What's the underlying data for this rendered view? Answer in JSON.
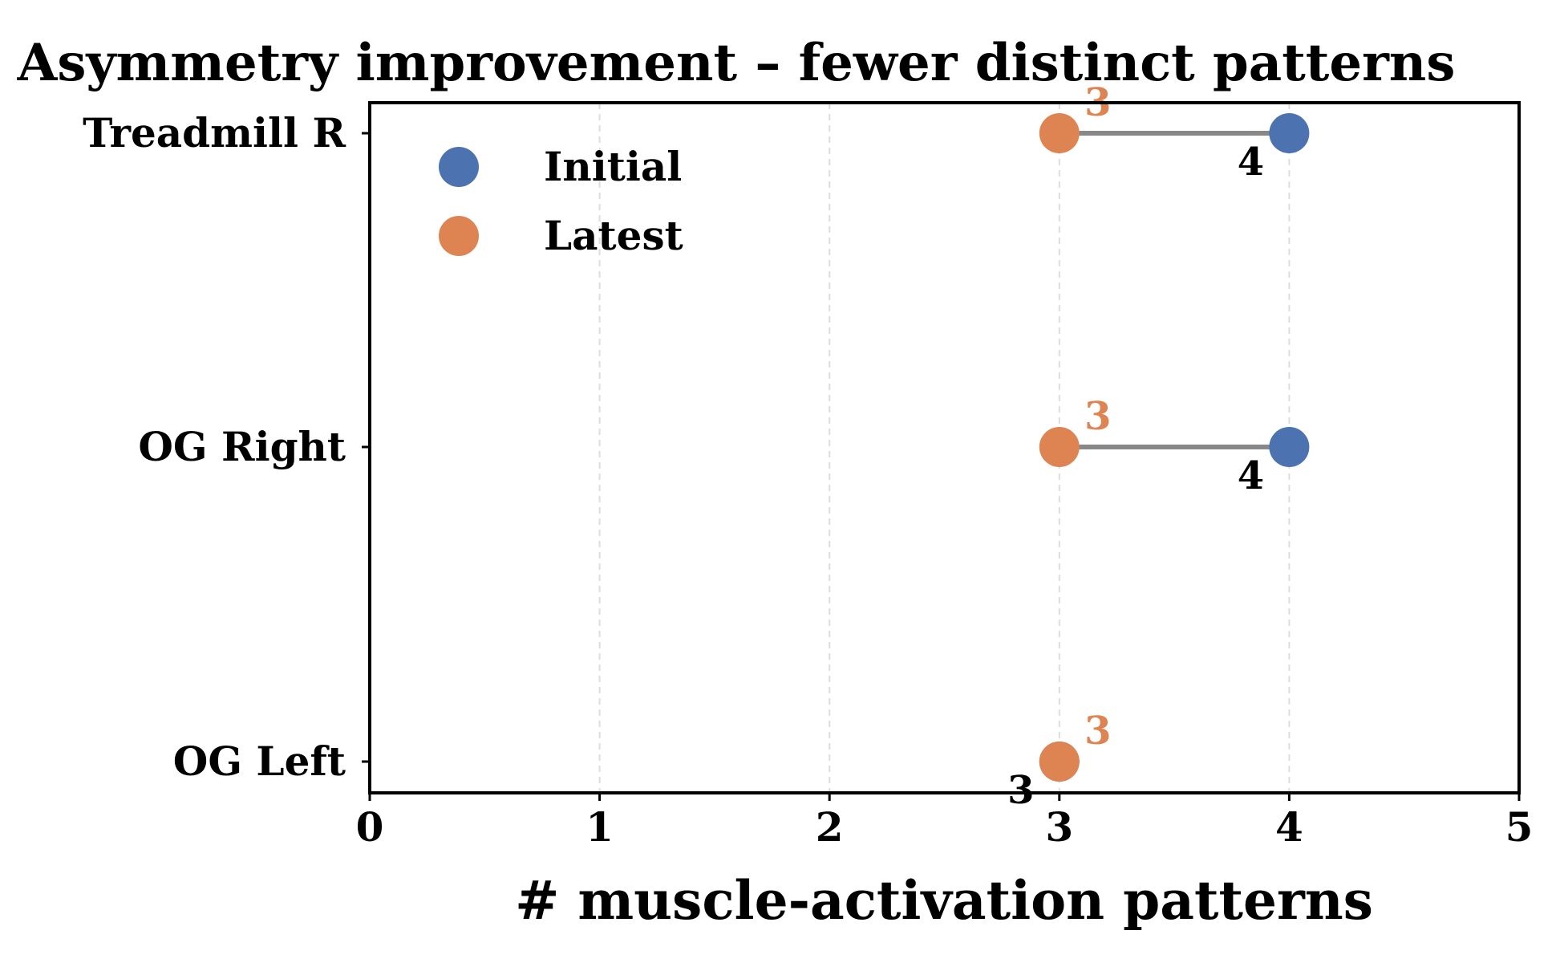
{
  "chart_data": {
    "type": "dumbbell",
    "title": "Asymmetry improvement – fewer distinct patterns",
    "xlabel": "# muscle-activation patterns",
    "ylabel": "",
    "xlim": [
      0,
      5
    ],
    "xticks": [
      "0",
      "1",
      "2",
      "3",
      "4",
      "5"
    ],
    "grid": "x-dashed",
    "legend_position": "upper-left",
    "categories": [
      "Treadmill R",
      "OG Right",
      "OG Left"
    ],
    "series": [
      {
        "name": "Initial",
        "color": "#4c72b0",
        "values": [
          4,
          4,
          3
        ]
      },
      {
        "name": "Latest",
        "color": "#dd8452",
        "values": [
          3,
          3,
          3
        ]
      }
    ],
    "connector_color": "#888888"
  }
}
